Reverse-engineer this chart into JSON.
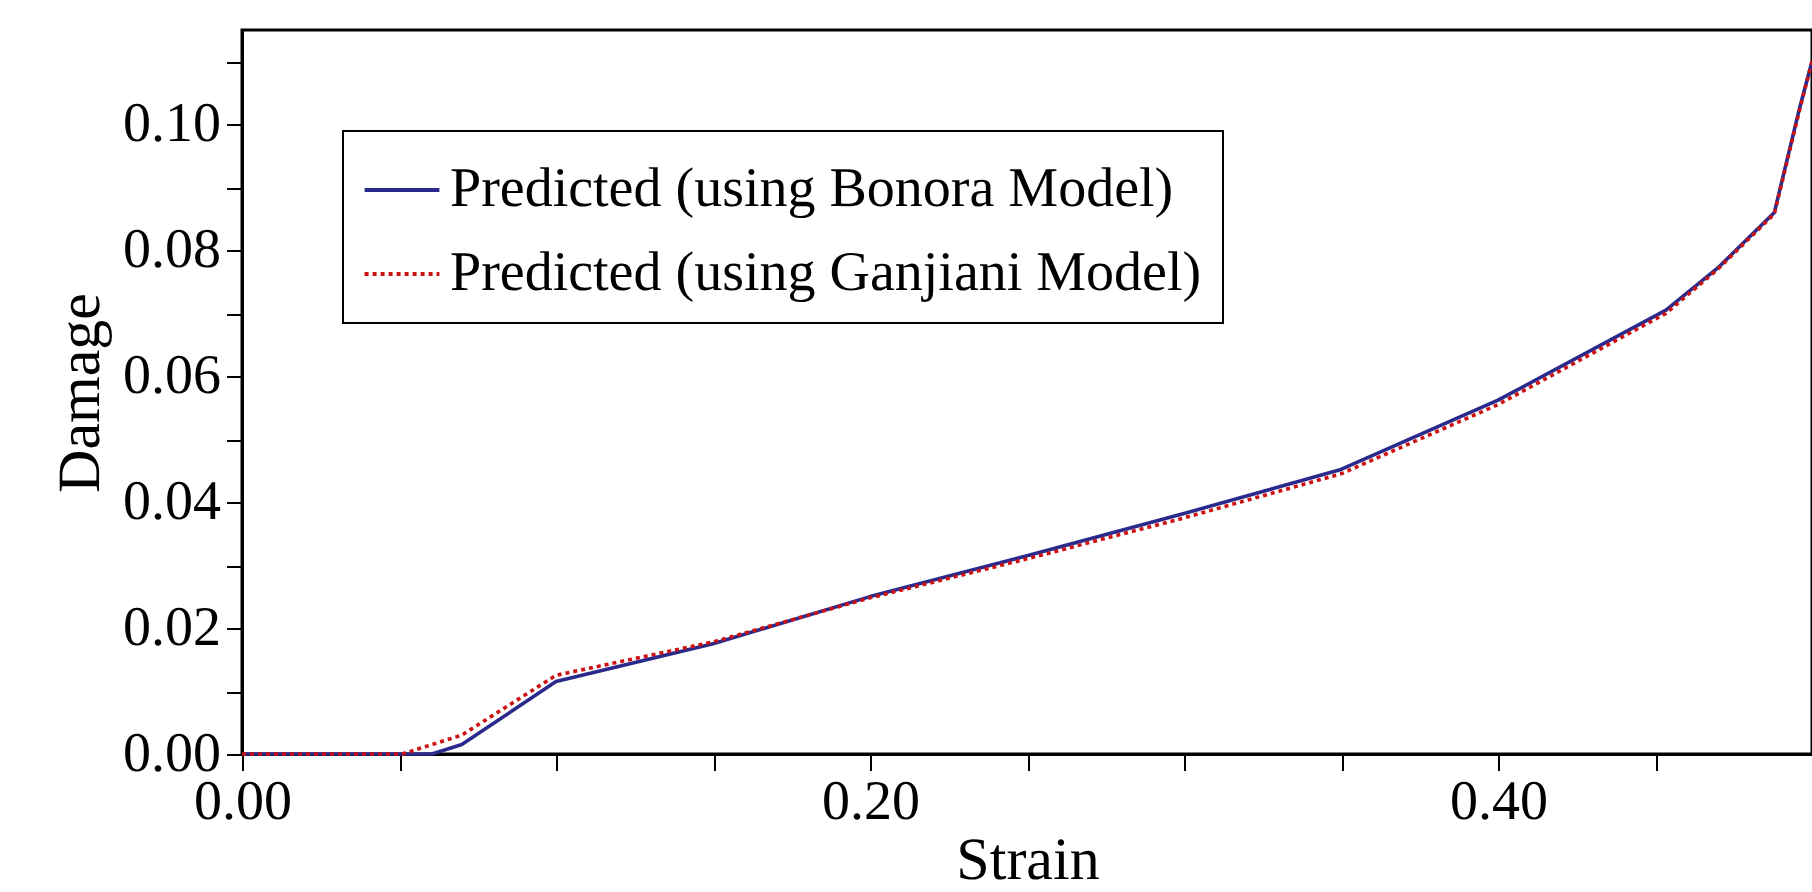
{
  "chart_data": {
    "type": "line",
    "xlabel": "Strain",
    "ylabel": "Damage",
    "xlim": [
      0,
      0.5
    ],
    "ylim": [
      0,
      0.115
    ],
    "xticks": [
      {
        "value": 0,
        "label": "0.00"
      },
      {
        "value": 0.05,
        "label": null
      },
      {
        "value": 0.1,
        "label": null
      },
      {
        "value": 0.15,
        "label": null
      },
      {
        "value": 0.2,
        "label": "0.20"
      },
      {
        "value": 0.25,
        "label": null
      },
      {
        "value": 0.3,
        "label": null
      },
      {
        "value": 0.35,
        "label": null
      },
      {
        "value": 0.4,
        "label": "0.40"
      },
      {
        "value": 0.45,
        "label": null
      },
      {
        "value": 0.5,
        "label": null
      }
    ],
    "yticks": [
      {
        "value": 0,
        "label": "0.00"
      },
      {
        "value": 0.01,
        "label": null
      },
      {
        "value": 0.02,
        "label": "0.02"
      },
      {
        "value": 0.03,
        "label": null
      },
      {
        "value": 0.04,
        "label": "0.04"
      },
      {
        "value": 0.05,
        "label": null
      },
      {
        "value": 0.06,
        "label": "0.06"
      },
      {
        "value": 0.07,
        "label": null
      },
      {
        "value": 0.08,
        "label": "0.08"
      },
      {
        "value": 0.09,
        "label": null
      },
      {
        "value": 0.1,
        "label": "0.10"
      },
      {
        "value": 0.11,
        "label": null
      }
    ],
    "legend": "top left",
    "grid": false,
    "series": [
      {
        "name": "Predicted (using Bonora Model)",
        "color": "#2a2a8c",
        "line_style": "solid",
        "x": [
          0,
          0.0605,
          0.07,
          0.1,
          0.15,
          0.2,
          0.25,
          0.3,
          0.35,
          0.4,
          0.4535,
          0.47,
          0.488,
          0.496,
          0.5
        ],
        "values": [
          0,
          0,
          0.0015,
          0.0115,
          0.0175,
          0.025,
          0.0315,
          0.0382,
          0.0452,
          0.0562,
          0.0705,
          0.0772,
          0.086,
          0.1025,
          0.11
        ]
      },
      {
        "name": "Predicted (using Ganjiani Model)",
        "color": "#cc1111",
        "line_style": "dotted",
        "x": [
          0,
          0.051,
          0.07,
          0.1,
          0.15,
          0.2,
          0.25,
          0.3,
          0.35,
          0.4,
          0.4535,
          0.47,
          0.488,
          0.496,
          0.5
        ],
        "values": [
          0,
          0,
          0.003,
          0.0125,
          0.0178,
          0.0248,
          0.031,
          0.0375,
          0.0445,
          0.0555,
          0.07,
          0.077,
          0.0858,
          0.1022,
          0.11
        ]
      }
    ]
  }
}
